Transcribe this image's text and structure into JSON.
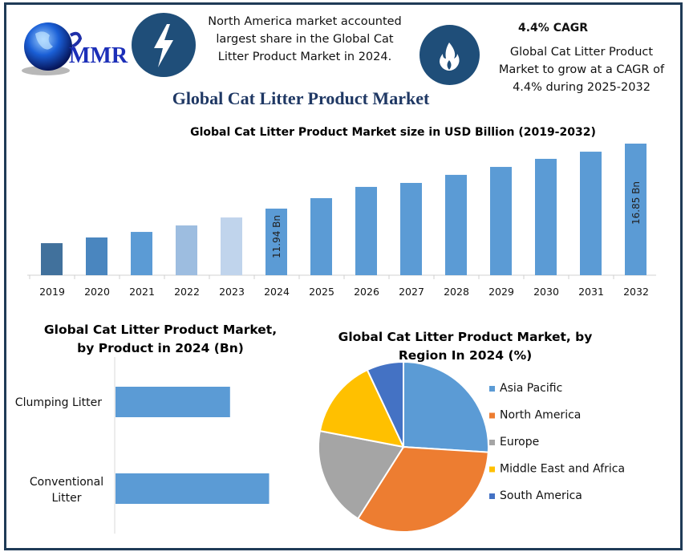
{
  "logo": {
    "text": "MMR"
  },
  "header": {
    "highlight_text": "North America market accounted largest share in the Global Cat Litter Product Market in 2024.",
    "cagr_title": "4.4% CAGR",
    "cagr_text": "Global Cat Litter Product Market to grow at a CAGR of 4.4% during 2025-2032",
    "main_title": "Global Cat Litter Product Market",
    "icons": [
      "lightning-icon",
      "flame-icon"
    ],
    "icon_color": "#1f4e79"
  },
  "chart_data": [
    {
      "type": "bar",
      "title": "Global Cat Litter Product Market size in USD Billion (2019-2032)",
      "categories": [
        "2019",
        "2020",
        "2021",
        "2022",
        "2023",
        "2024",
        "2025",
        "2026",
        "2027",
        "2028",
        "2029",
        "2030",
        "2031",
        "2032"
      ],
      "values": [
        9.33,
        9.76,
        10.18,
        10.67,
        11.27,
        11.94,
        12.73,
        13.58,
        13.88,
        14.49,
        15.09,
        15.7,
        16.24,
        16.85
      ],
      "data_labels": {
        "2024": "11.94 Bn",
        "2032": "16.85 Bn"
      },
      "colors": [
        "#41719c",
        "#4a86bf",
        "#5b9bd5",
        "#9dbde0",
        "#c0d4ec",
        "#5b9bd5",
        "#5b9bd5",
        "#5b9bd5",
        "#5b9bd5",
        "#5b9bd5",
        "#5b9bd5",
        "#5b9bd5",
        "#5b9bd5",
        "#5b9bd5"
      ],
      "grid": false
    },
    {
      "type": "bar",
      "orientation": "horizontal",
      "title": "Global Cat Litter Product Market, by Product in 2024 (Bn)",
      "categories": [
        "Clumping Litter",
        "Conventional Litter"
      ],
      "values": [
        5.1,
        6.84
      ],
      "color": "#5b9bd5"
    },
    {
      "type": "pie",
      "title": "Global Cat Litter Product Market, by Region In 2024 (%)",
      "categories": [
        "Asia Pacific",
        "North America",
        "Europe",
        "Middle East and Africa",
        "South America"
      ],
      "values": [
        26,
        33,
        19,
        15,
        7
      ],
      "colors": [
        "#5b9bd5",
        "#ed7d31",
        "#a5a5a5",
        "#ffc000",
        "#4472c4"
      ],
      "legend": "right"
    }
  ]
}
